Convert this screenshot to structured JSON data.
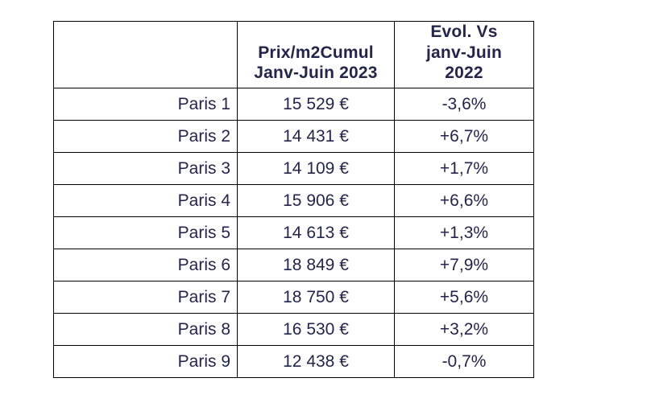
{
  "colors": {
    "text": "#23254a",
    "border": "#000000",
    "background": "#ffffff"
  },
  "table": {
    "columns": [
      {
        "label": ""
      },
      {
        "label": "Prix/m2Cumul\nJanv-Juin 2023"
      },
      {
        "label": "Evol. Vs\njanv-Juin\n2022"
      }
    ],
    "rows": [
      {
        "district": "Paris 1",
        "price": "15 529 €",
        "evolution": "-3,6%"
      },
      {
        "district": "Paris 2",
        "price": "14 431 €",
        "evolution": "+6,7%"
      },
      {
        "district": "Paris 3",
        "price": "14 109 €",
        "evolution": "+1,7%"
      },
      {
        "district": "Paris 4",
        "price": "15 906 €",
        "evolution": "+6,6%"
      },
      {
        "district": "Paris 5",
        "price": "14 613 €",
        "evolution": "+1,3%"
      },
      {
        "district": "Paris 6",
        "price": "18 849 €",
        "evolution": "+7,9%"
      },
      {
        "district": "Paris 7",
        "price": "18 750 €",
        "evolution": "+5,6%"
      },
      {
        "district": "Paris 8",
        "price": "16 530 €",
        "evolution": "+3,2%"
      },
      {
        "district": "Paris 9",
        "price": "12 438 €",
        "evolution": "-0,7%"
      }
    ]
  },
  "chart_data": {
    "type": "table",
    "title": "",
    "columns": [
      "",
      "Prix/m2Cumul Janv-Juin 2023",
      "Evol. Vs janv-Juin 2022"
    ],
    "rows": [
      [
        "Paris 1",
        "15 529 €",
        "-3,6%"
      ],
      [
        "Paris 2",
        "14 431 €",
        "+6,7%"
      ],
      [
        "Paris 3",
        "14 109 €",
        "+1,7%"
      ],
      [
        "Paris 4",
        "15 906 €",
        "+6,6%"
      ],
      [
        "Paris 5",
        "14 613 €",
        "+1,3%"
      ],
      [
        "Paris 6",
        "18 849 €",
        "+7,9%"
      ],
      [
        "Paris 7",
        "18 750 €",
        "+5,6%"
      ],
      [
        "Paris 8",
        "16 530 €",
        "+3,2%"
      ],
      [
        "Paris 9",
        "12 438 €",
        "-0,7%"
      ]
    ],
    "prices_eur_per_m2": [
      15529,
      14431,
      14109,
      15906,
      14613,
      18849,
      18750,
      16530,
      12438
    ],
    "evolution_pct": [
      -3.6,
      6.7,
      1.7,
      6.6,
      1.3,
      7.9,
      5.6,
      3.2,
      -0.7
    ]
  }
}
